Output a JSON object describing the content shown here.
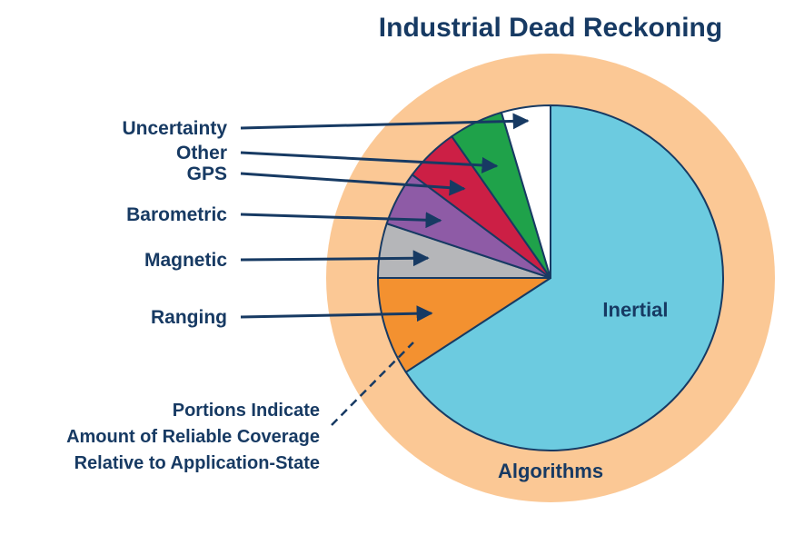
{
  "chart_data": {
    "type": "pie",
    "title": "Industrial Dead Reckoning",
    "ring_label": "Algorithms",
    "slices": [
      {
        "label": "Inertial",
        "value": 64.5,
        "color": "#6ccbe0",
        "callout": false
      },
      {
        "label": "Ranging",
        "value": 9.0,
        "color": "#f39130",
        "callout": true
      },
      {
        "label": "Magnetic",
        "value": 5.0,
        "color": "#b5b6b9",
        "callout": true
      },
      {
        "label": "Barometric",
        "value": 5.0,
        "color": "#8e5ba6",
        "callout": true
      },
      {
        "label": "GPS",
        "value": 5.0,
        "color": "#cc1f45",
        "callout": true
      },
      {
        "label": "Other",
        "value": 5.0,
        "color": "#1fa24a",
        "callout": true
      },
      {
        "label": "Uncertainty",
        "value": 4.5,
        "color": "#ffffff",
        "callout": true
      }
    ],
    "note_lines": [
      "Portions Indicate",
      "Amount of Reliable Coverage",
      "Relative to Application-State"
    ],
    "colors": {
      "ring": "#fbc895",
      "text": "#173a63",
      "outline": "#173a63"
    }
  }
}
